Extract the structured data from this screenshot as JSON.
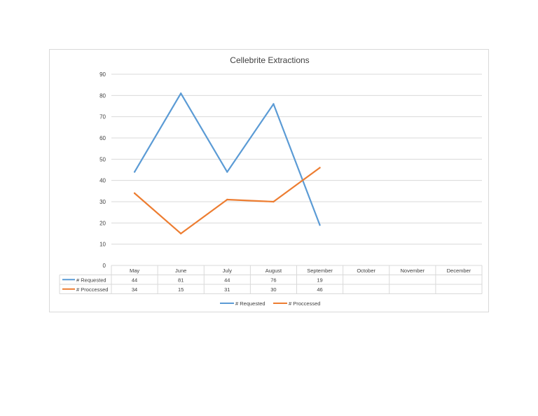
{
  "chart_data": {
    "type": "line",
    "title": "Cellebrite Extractions",
    "xlabel": "",
    "ylabel": "",
    "categories": [
      "May",
      "June",
      "July",
      "August",
      "September",
      "October",
      "November",
      "December"
    ],
    "series": [
      {
        "name": "# Requested",
        "values": [
          44,
          81,
          44,
          76,
          19,
          null,
          null,
          null
        ],
        "color": "#5b9bd5"
      },
      {
        "name": "# Proccessed",
        "values": [
          34,
          15,
          31,
          30,
          46,
          null,
          null,
          null
        ],
        "color": "#ed7d31"
      }
    ],
    "ylim": [
      0,
      90
    ],
    "yticks": [
      0,
      10,
      20,
      30,
      40,
      50,
      60,
      70,
      80,
      90
    ],
    "grid": true,
    "data_table": true,
    "legend": "bottom"
  }
}
